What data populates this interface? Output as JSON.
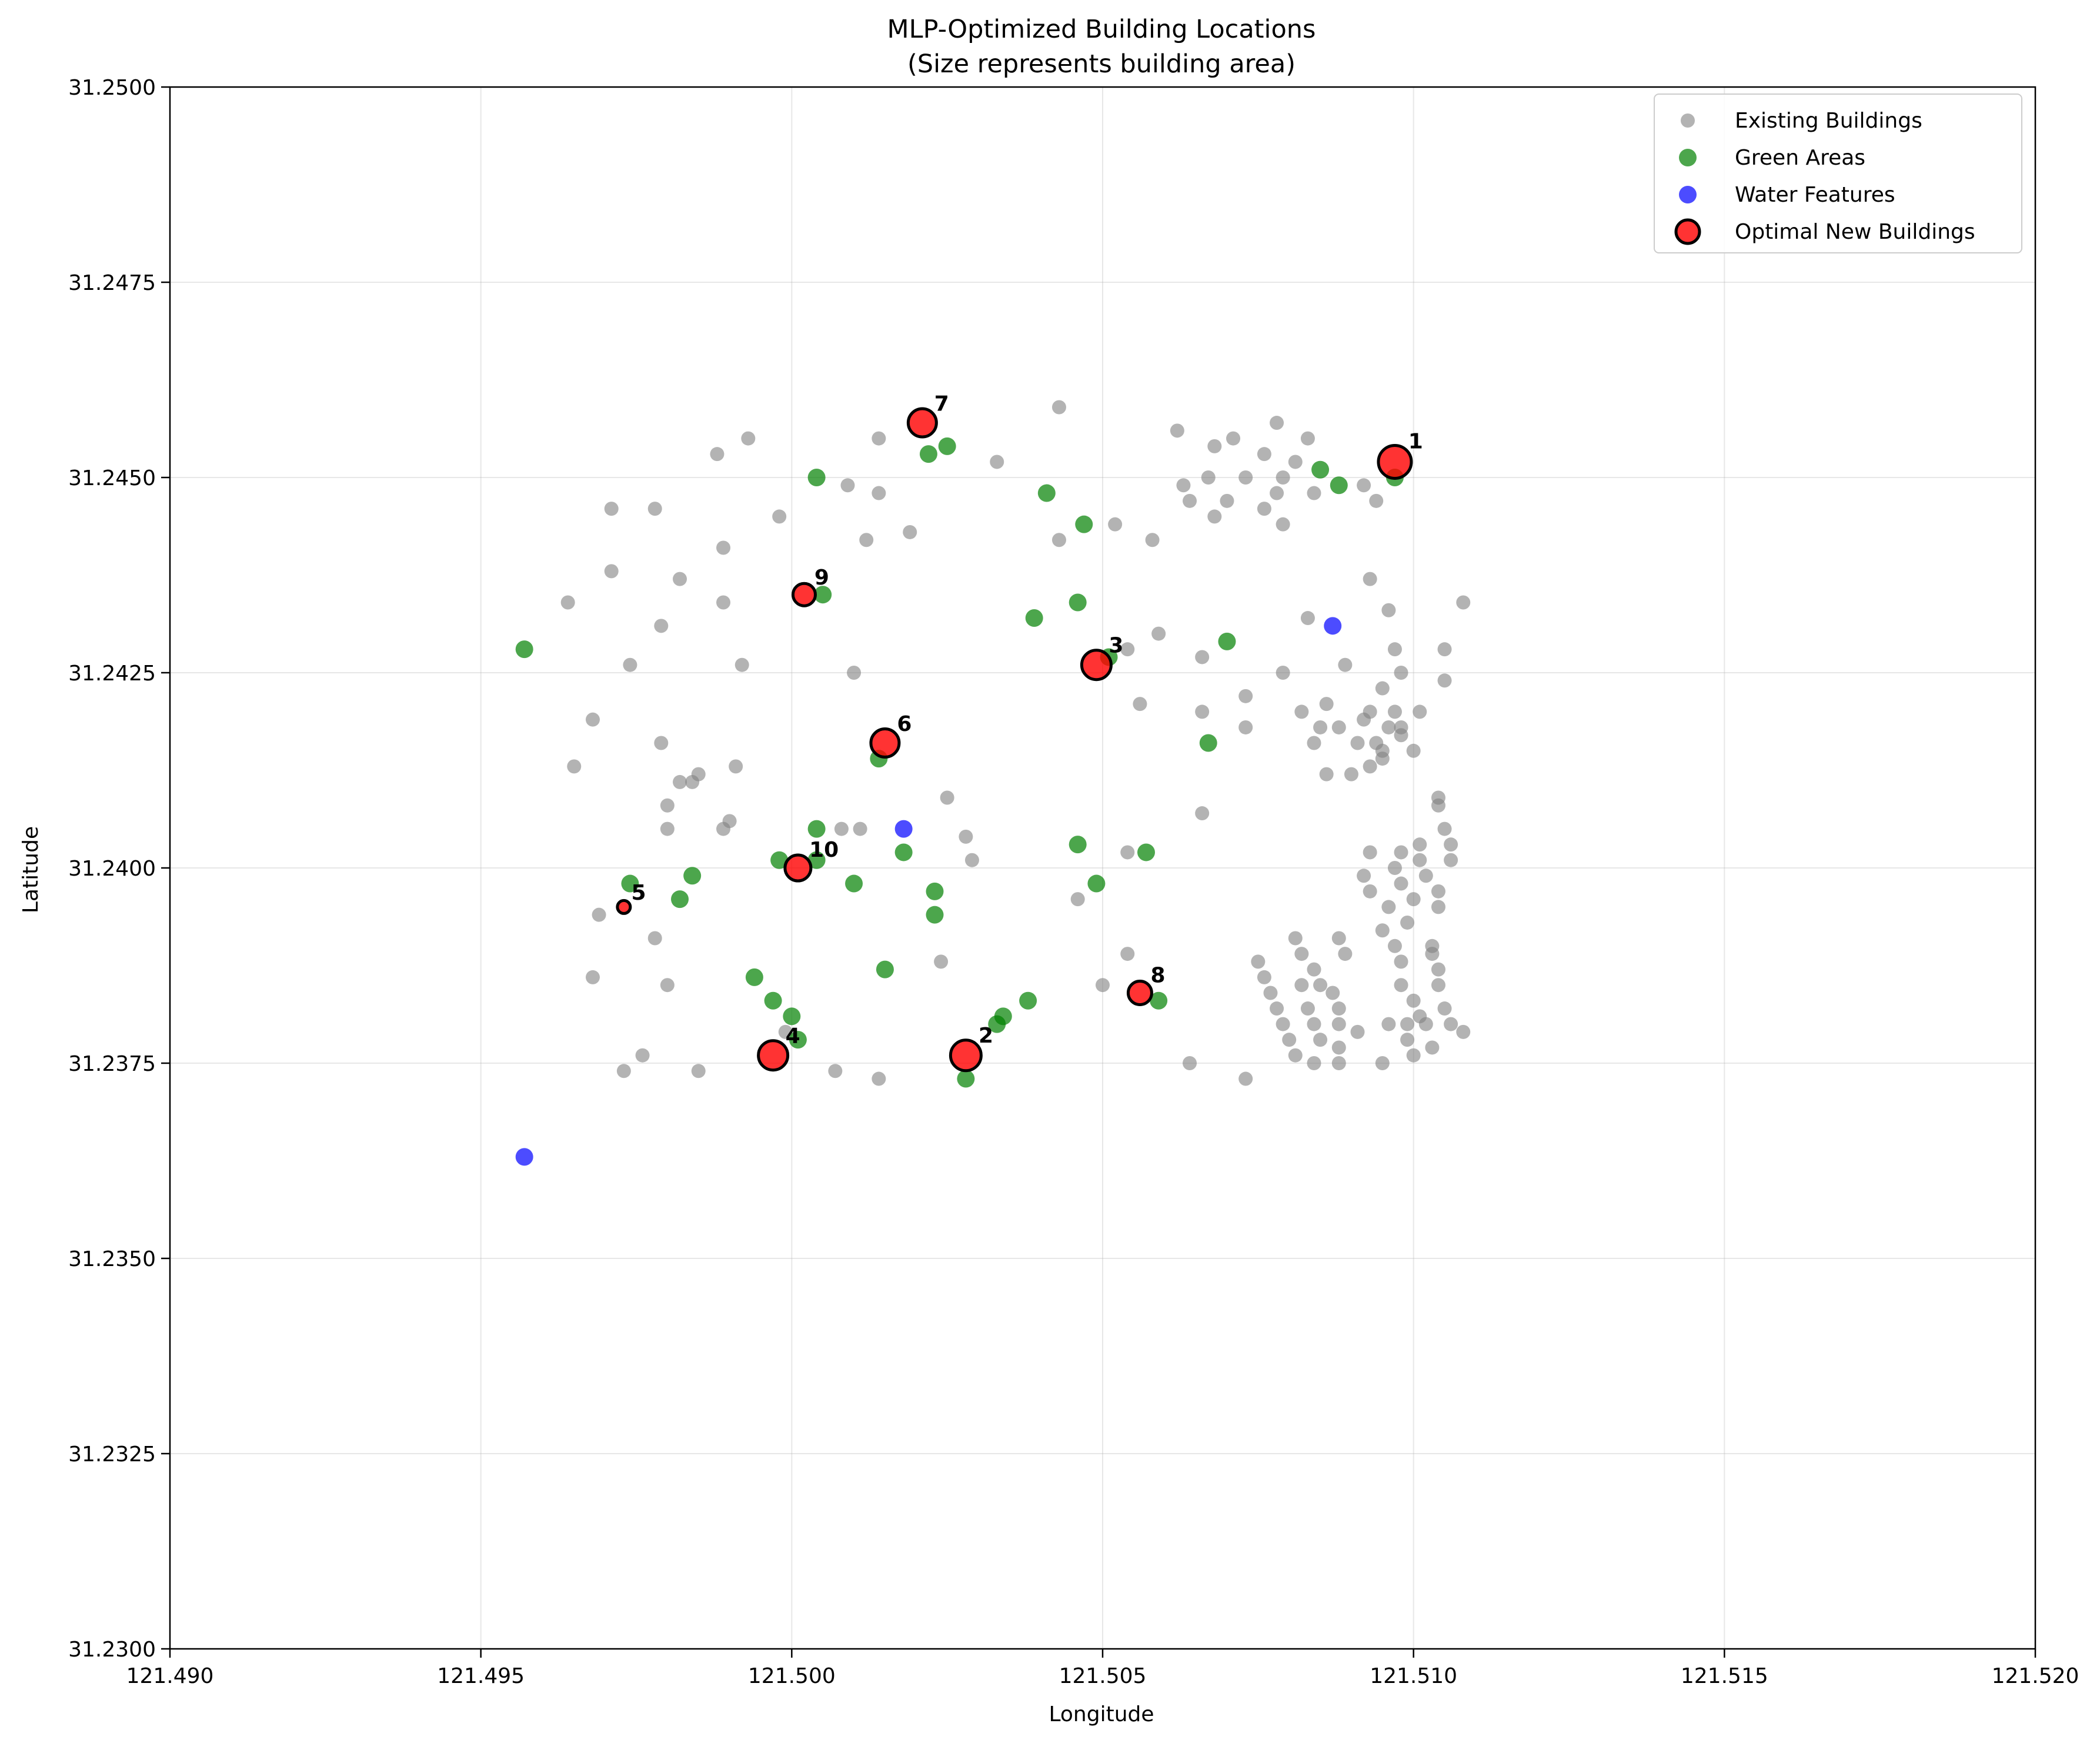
{
  "chart_data": {
    "type": "scatter",
    "title": "MLP-Optimized Building Locations",
    "subtitle": "(Size represents building area)",
    "xlabel": "Longitude",
    "ylabel": "Latitude",
    "xlim": [
      121.49,
      121.52
    ],
    "ylim": [
      31.23,
      31.25
    ],
    "xticks": [
      "121.490",
      "121.495",
      "121.500",
      "121.505",
      "121.510",
      "121.515",
      "121.520"
    ],
    "yticks": [
      "31.2300",
      "31.2325",
      "31.2350",
      "31.2375",
      "31.2400",
      "31.2425",
      "31.2450",
      "31.2475",
      "31.2500"
    ],
    "grid": true,
    "legend_position": "top-right",
    "colors": {
      "existing": "#808080",
      "green": "#008000",
      "water": "#0000ff",
      "optimal": "#ff0000",
      "optimal_edge": "#000000"
    },
    "series": [
      {
        "name": "Existing Buildings",
        "points": [
          [
            121.5043,
            31.2459
          ],
          [
            121.4993,
            31.2455
          ],
          [
            121.4988,
            31.2453
          ],
          [
            121.5014,
            31.2455
          ],
          [
            121.5033,
            31.2452
          ],
          [
            121.5009,
            31.2449
          ],
          [
            121.5014,
            31.2448
          ],
          [
            121.4971,
            31.2446
          ],
          [
            121.4978,
            31.2446
          ],
          [
            121.4998,
            31.2445
          ],
          [
            121.5012,
            31.2442
          ],
          [
            121.5019,
            31.2443
          ],
          [
            121.4989,
            31.2441
          ],
          [
            121.4971,
            31.2438
          ],
          [
            121.4982,
            31.2437
          ],
          [
            121.4964,
            31.2434
          ],
          [
            121.4989,
            31.2434
          ],
          [
            121.4979,
            31.2431
          ],
          [
            121.4974,
            31.2426
          ],
          [
            121.4992,
            31.2426
          ],
          [
            121.501,
            31.2425
          ],
          [
            121.4968,
            31.2419
          ],
          [
            121.4965,
            31.2413
          ],
          [
            121.4979,
            31.2416
          ],
          [
            121.4982,
            31.2411
          ],
          [
            121.4985,
            31.2412
          ],
          [
            121.4984,
            31.2411
          ],
          [
            121.4991,
            31.2413
          ],
          [
            121.498,
            31.2408
          ],
          [
            121.498,
            31.2405
          ],
          [
            121.4989,
            31.2405
          ],
          [
            121.499,
            31.2406
          ],
          [
            121.5008,
            31.2405
          ],
          [
            121.5011,
            31.2405
          ],
          [
            121.5025,
            31.2409
          ],
          [
            121.5028,
            31.2404
          ],
          [
            121.5029,
            31.2401
          ],
          [
            121.4969,
            31.2394
          ],
          [
            121.4978,
            31.2391
          ],
          [
            121.4968,
            31.2386
          ],
          [
            121.498,
            31.2385
          ],
          [
            121.4999,
            31.2379
          ],
          [
            121.4976,
            31.2376
          ],
          [
            121.4973,
            31.2374
          ],
          [
            121.4985,
            31.2374
          ],
          [
            121.5007,
            31.2374
          ],
          [
            121.5014,
            31.2373
          ],
          [
            121.5024,
            31.2388
          ],
          [
            121.5043,
            31.2442
          ],
          [
            121.5052,
            31.2444
          ],
          [
            121.5058,
            31.2442
          ],
          [
            121.5062,
            31.2456
          ],
          [
            121.5063,
            31.2449
          ],
          [
            121.5064,
            31.2447
          ],
          [
            121.5067,
            31.245
          ],
          [
            121.5068,
            31.2454
          ],
          [
            121.5071,
            31.2455
          ],
          [
            121.5068,
            31.2445
          ],
          [
            121.507,
            31.2447
          ],
          [
            121.5073,
            31.245
          ],
          [
            121.5076,
            31.2453
          ],
          [
            121.5078,
            31.2457
          ],
          [
            121.5076,
            31.2446
          ],
          [
            121.5078,
            31.2448
          ],
          [
            121.5079,
            31.245
          ],
          [
            121.5079,
            31.2444
          ],
          [
            121.5081,
            31.2452
          ],
          [
            121.5083,
            31.2455
          ],
          [
            121.5084,
            31.2448
          ],
          [
            121.5092,
            31.2449
          ],
          [
            121.5094,
            31.2447
          ],
          [
            121.5059,
            31.243
          ],
          [
            121.5054,
            31.2428
          ],
          [
            121.5066,
            31.2427
          ],
          [
            121.5056,
            31.2421
          ],
          [
            121.5066,
            31.242
          ],
          [
            121.5073,
            31.2422
          ],
          [
            121.5073,
            31.2418
          ],
          [
            121.5079,
            31.2425
          ],
          [
            121.5082,
            31.242
          ],
          [
            121.5083,
            31.2432
          ],
          [
            121.5084,
            31.2416
          ],
          [
            121.5085,
            31.2418
          ],
          [
            121.5086,
            31.2421
          ],
          [
            121.5088,
            31.2418
          ],
          [
            121.5089,
            31.2426
          ],
          [
            121.5086,
            31.2412
          ],
          [
            121.509,
            31.2412
          ],
          [
            121.5091,
            31.2416
          ],
          [
            121.5092,
            31.2419
          ],
          [
            121.5093,
            31.2437
          ],
          [
            121.5093,
            31.242
          ],
          [
            121.5093,
            31.2413
          ],
          [
            121.5094,
            31.2416
          ],
          [
            121.5095,
            31.2423
          ],
          [
            121.5095,
            31.2415
          ],
          [
            121.5095,
            31.2414
          ],
          [
            121.5096,
            31.2418
          ],
          [
            121.5096,
            31.2433
          ],
          [
            121.5097,
            31.2428
          ],
          [
            121.5097,
            31.242
          ],
          [
            121.5098,
            31.2418
          ],
          [
            121.5098,
            31.2425
          ],
          [
            121.5098,
            31.2417
          ],
          [
            121.51,
            31.2415
          ],
          [
            121.5101,
            31.242
          ],
          [
            121.5105,
            31.2428
          ],
          [
            121.5105,
            31.2424
          ],
          [
            121.5108,
            31.2434
          ],
          [
            121.5066,
            31.2407
          ],
          [
            121.5054,
            31.2402
          ],
          [
            121.5046,
            31.2396
          ],
          [
            121.5054,
            31.2389
          ],
          [
            121.505,
            31.2385
          ],
          [
            121.5064,
            31.2375
          ],
          [
            121.5073,
            31.2373
          ],
          [
            121.5093,
            31.2402
          ],
          [
            121.5092,
            31.2399
          ],
          [
            121.5093,
            31.2397
          ],
          [
            121.5095,
            31.2392
          ],
          [
            121.5096,
            31.2395
          ],
          [
            121.5097,
            31.24
          ],
          [
            121.5098,
            31.2402
          ],
          [
            121.5098,
            31.2398
          ],
          [
            121.5099,
            31.2393
          ],
          [
            121.51,
            31.2396
          ],
          [
            121.5101,
            31.2401
          ],
          [
            121.5101,
            31.2403
          ],
          [
            121.5102,
            31.2399
          ],
          [
            121.5104,
            31.2397
          ],
          [
            121.5104,
            31.2395
          ],
          [
            121.5104,
            31.2408
          ],
          [
            121.5104,
            31.2409
          ],
          [
            121.5105,
            31.2405
          ],
          [
            121.5106,
            31.2403
          ],
          [
            121.5106,
            31.2401
          ],
          [
            121.5075,
            31.2388
          ],
          [
            121.5076,
            31.2386
          ],
          [
            121.5077,
            31.2384
          ],
          [
            121.5078,
            31.2382
          ],
          [
            121.5079,
            31.238
          ],
          [
            121.508,
            31.2378
          ],
          [
            121.5081,
            31.2376
          ],
          [
            121.5081,
            31.2391
          ],
          [
            121.5082,
            31.2389
          ],
          [
            121.5082,
            31.2385
          ],
          [
            121.5083,
            31.2382
          ],
          [
            121.5084,
            31.238
          ],
          [
            121.5084,
            31.2375
          ],
          [
            121.5084,
            31.2387
          ],
          [
            121.5085,
            31.2385
          ],
          [
            121.5085,
            31.2378
          ],
          [
            121.5087,
            31.2384
          ],
          [
            121.5088,
            31.2382
          ],
          [
            121.5088,
            31.238
          ],
          [
            121.5088,
            31.2377
          ],
          [
            121.5088,
            31.2375
          ],
          [
            121.5088,
            31.2391
          ],
          [
            121.5089,
            31.2389
          ],
          [
            121.5091,
            31.2379
          ],
          [
            121.5095,
            31.2375
          ],
          [
            121.5096,
            31.238
          ],
          [
            121.5097,
            31.239
          ],
          [
            121.5098,
            31.2388
          ],
          [
            121.5098,
            31.2385
          ],
          [
            121.5099,
            31.238
          ],
          [
            121.5099,
            31.2378
          ],
          [
            121.51,
            31.2376
          ],
          [
            121.51,
            31.2383
          ],
          [
            121.5101,
            31.2381
          ],
          [
            121.5102,
            31.238
          ],
          [
            121.5103,
            31.239
          ],
          [
            121.5103,
            31.2389
          ],
          [
            121.5103,
            31.2377
          ],
          [
            121.5104,
            31.2387
          ],
          [
            121.5104,
            31.2385
          ],
          [
            121.5105,
            31.2382
          ],
          [
            121.5106,
            31.238
          ],
          [
            121.5108,
            31.2379
          ]
        ]
      },
      {
        "name": "Green Areas",
        "points": [
          [
            121.4957,
            31.2428
          ],
          [
            121.5004,
            31.245
          ],
          [
            121.5022,
            31.2453
          ],
          [
            121.5025,
            31.2454
          ],
          [
            121.5041,
            31.2448
          ],
          [
            121.5047,
            31.2444
          ],
          [
            121.5005,
            31.2435
          ],
          [
            121.5039,
            31.2432
          ],
          [
            121.5046,
            31.2434
          ],
          [
            121.5051,
            31.2427
          ],
          [
            121.507,
            31.2429
          ],
          [
            121.5085,
            31.2451
          ],
          [
            121.5088,
            31.2449
          ],
          [
            121.5097,
            31.245
          ],
          [
            121.5014,
            31.2414
          ],
          [
            121.5067,
            31.2416
          ],
          [
            121.5004,
            31.2405
          ],
          [
            121.4998,
            31.2401
          ],
          [
            121.5004,
            31.2401
          ],
          [
            121.5018,
            31.2402
          ],
          [
            121.5046,
            31.2403
          ],
          [
            121.5057,
            31.2402
          ],
          [
            121.4974,
            31.2398
          ],
          [
            121.4984,
            31.2399
          ],
          [
            121.4982,
            31.2396
          ],
          [
            121.501,
            31.2398
          ],
          [
            121.5023,
            31.2397
          ],
          [
            121.5023,
            31.2394
          ],
          [
            121.5049,
            31.2398
          ],
          [
            121.4994,
            31.2386
          ],
          [
            121.5015,
            31.2387
          ],
          [
            121.4997,
            31.2383
          ],
          [
            121.5,
            31.2381
          ],
          [
            121.5001,
            31.2378
          ],
          [
            121.5033,
            31.238
          ],
          [
            121.5034,
            31.2381
          ],
          [
            121.5038,
            31.2383
          ],
          [
            121.5059,
            31.2383
          ],
          [
            121.5028,
            31.2373
          ]
        ]
      },
      {
        "name": "Water Features",
        "points": [
          [
            121.5087,
            31.2431
          ],
          [
            121.5018,
            31.2405
          ],
          [
            121.4957,
            31.2363
          ]
        ]
      },
      {
        "name": "Optimal New Buildings",
        "points": [
          {
            "label": "1",
            "x": 121.5097,
            "y": 31.2452,
            "size": 28
          },
          {
            "label": "2",
            "x": 121.5028,
            "y": 31.2376,
            "size": 26
          },
          {
            "label": "3",
            "x": 121.5049,
            "y": 31.2426,
            "size": 25
          },
          {
            "label": "4",
            "x": 121.4997,
            "y": 31.2376,
            "size": 25
          },
          {
            "label": "5",
            "x": 121.4973,
            "y": 31.2395,
            "size": 11
          },
          {
            "label": "6",
            "x": 121.5015,
            "y": 31.2416,
            "size": 24
          },
          {
            "label": "7",
            "x": 121.5021,
            "y": 31.2457,
            "size": 24
          },
          {
            "label": "8",
            "x": 121.5056,
            "y": 31.2384,
            "size": 20
          },
          {
            "label": "9",
            "x": 121.5002,
            "y": 31.2435,
            "size": 19
          },
          {
            "label": "10",
            "x": 121.5001,
            "y": 31.24,
            "size": 22
          }
        ]
      }
    ]
  }
}
